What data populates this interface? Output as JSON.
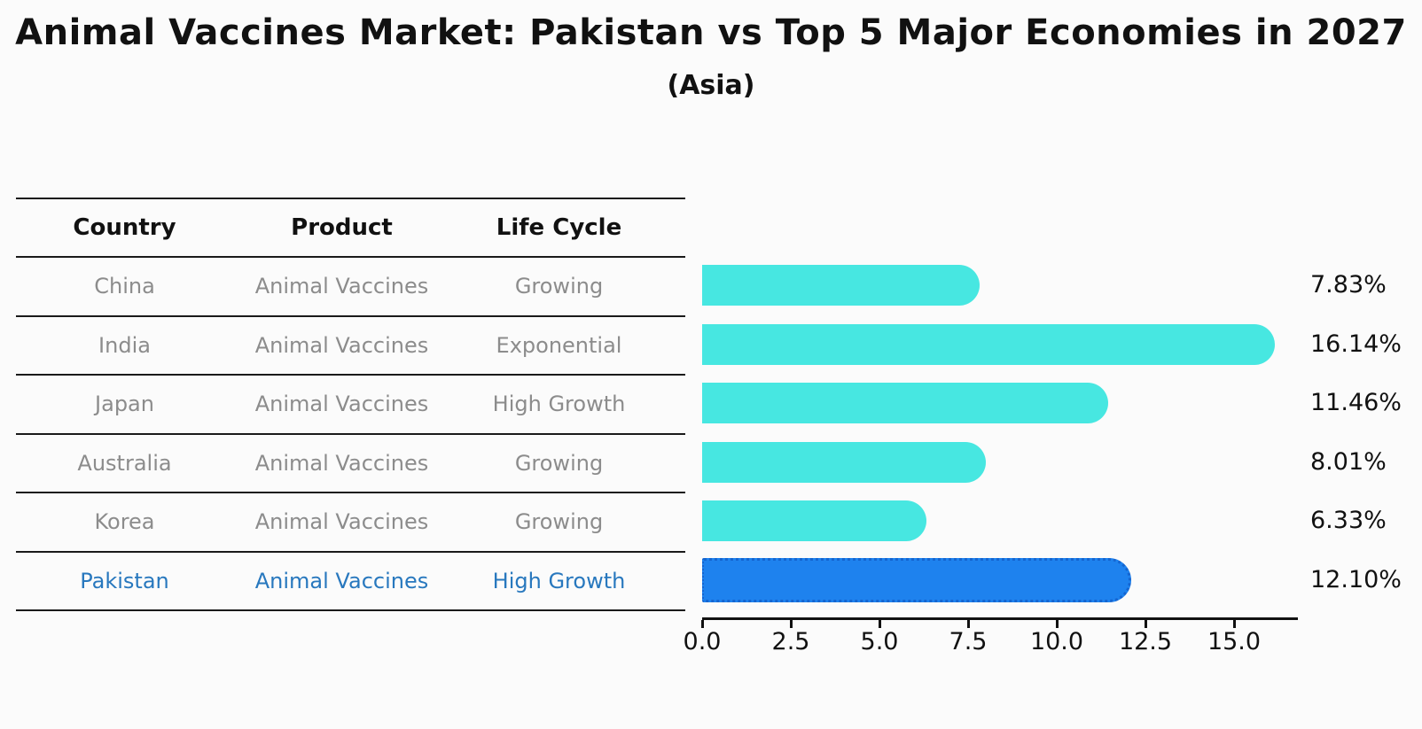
{
  "chart": {
    "title": "Animal Vaccines Market: Pakistan vs Top 5 Major Economies in 2027",
    "subtitle": "(Asia)"
  },
  "table": {
    "headers": [
      "Country",
      "Product",
      "Life Cycle"
    ],
    "rows": [
      {
        "country": "China",
        "product": "Animal Vaccines",
        "life_cycle": "Growing",
        "highlight": false
      },
      {
        "country": "India",
        "product": "Animal Vaccines",
        "life_cycle": "Exponential",
        "highlight": false
      },
      {
        "country": "Japan",
        "product": "Animal Vaccines",
        "life_cycle": "High Growth",
        "highlight": false
      },
      {
        "country": "Australia",
        "product": "Animal Vaccines",
        "life_cycle": "Growing",
        "highlight": false
      },
      {
        "country": "Korea",
        "product": "Animal Vaccines",
        "life_cycle": "Growing",
        "highlight": false
      },
      {
        "country": "Pakistan",
        "product": "Animal Vaccines",
        "life_cycle": "High Growth",
        "highlight": true
      }
    ]
  },
  "chart_data": {
    "type": "bar",
    "orientation": "horizontal",
    "title": "Animal Vaccines Market: Pakistan vs Top 5 Major Economies in 2027",
    "subtitle": "(Asia)",
    "categories": [
      "China",
      "India",
      "Japan",
      "Australia",
      "Korea",
      "Pakistan"
    ],
    "values": [
      7.83,
      16.14,
      11.46,
      8.01,
      6.33,
      12.1
    ],
    "value_labels": [
      "7.83%",
      "16.14%",
      "11.46%",
      "8.01%",
      "6.33%",
      "12.10%"
    ],
    "highlight_index": 5,
    "xlabel": "",
    "ylabel": "",
    "xlim": [
      0,
      16.75
    ],
    "x_ticks": [
      0.0,
      2.5,
      5.0,
      7.5,
      10.0,
      12.5,
      15.0
    ],
    "x_tick_labels": [
      "0.0",
      "2.5",
      "5.0",
      "7.5",
      "10.0",
      "12.5",
      "15.0"
    ],
    "grid": false,
    "legend": "none",
    "colors": {
      "bar_default": "#47e7e1",
      "bar_highlight": "#1e82ee",
      "bar_highlight_border": "#1565d0",
      "highlight_text": "#2878be",
      "row_text": "#8c8c8c",
      "axis_text": "#111111"
    }
  }
}
